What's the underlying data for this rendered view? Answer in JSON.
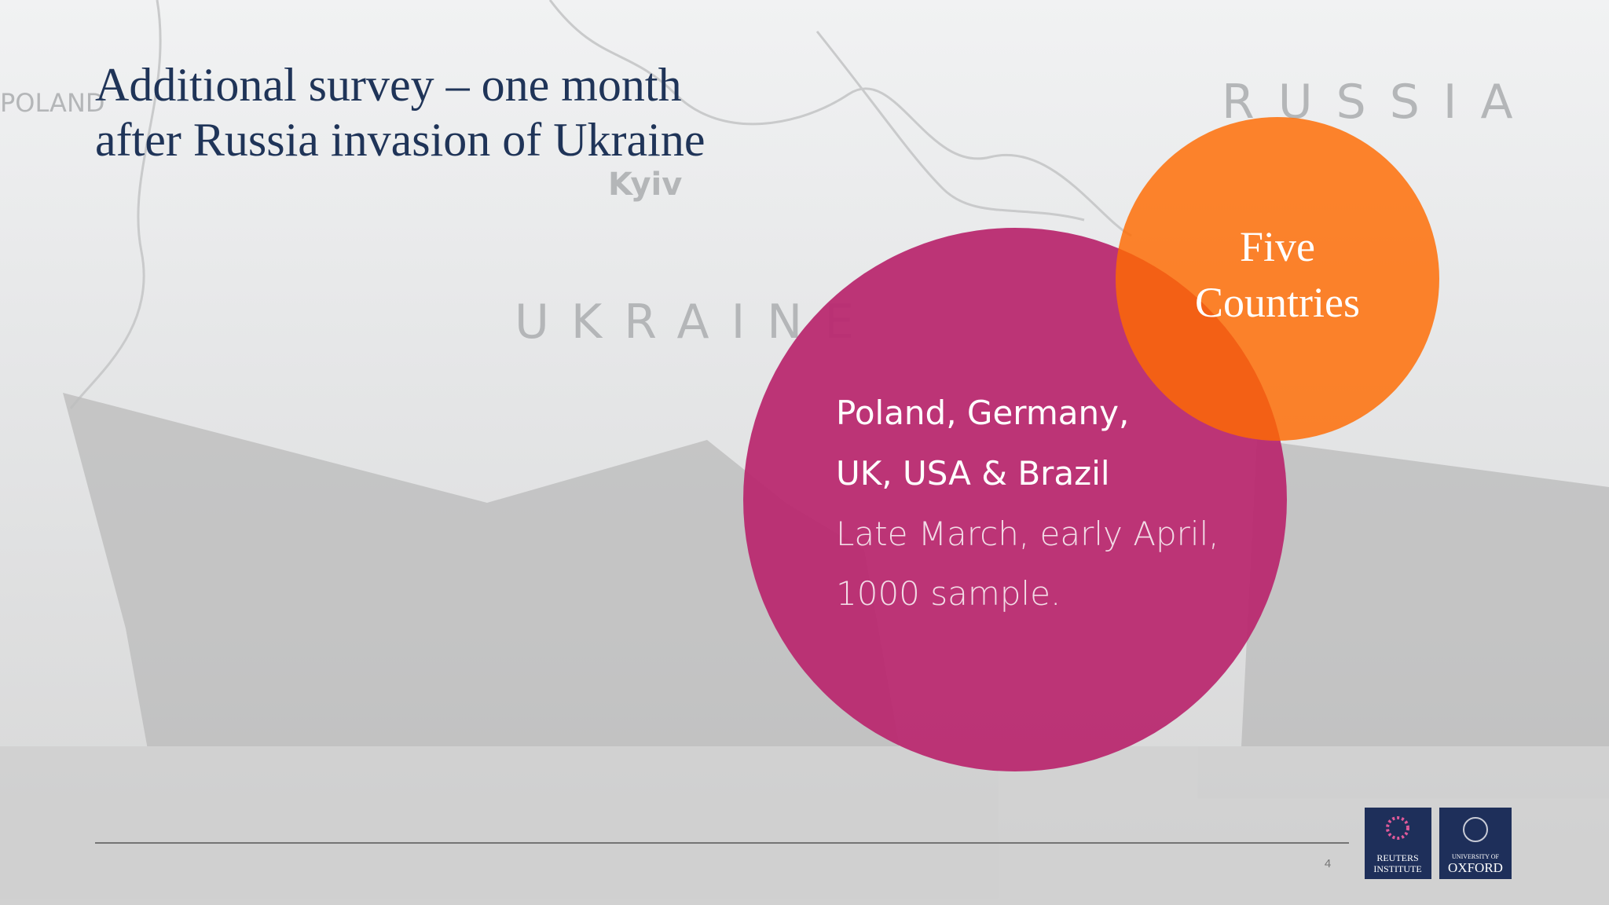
{
  "slide": {
    "title_lines": [
      "Additional survey – one month",
      "after Russia invasion of Ukraine"
    ],
    "background_labels": [
      "POLAND",
      "Kyiv",
      "UKRAINE",
      "RUSSIA"
    ],
    "orange_circle": {
      "lines": [
        "Five",
        "Countries"
      ]
    },
    "pink_circle": {
      "bold_lines": [
        "Poland, Germany,",
        "UK, USA & Brazil"
      ],
      "light_lines": [
        "Late March, early April,",
        "1000 sample."
      ]
    },
    "page_number": "4",
    "logos": [
      {
        "lines": [
          "REUTERS",
          "INSTITUTE"
        ]
      },
      {
        "lines": [
          "UNIVERSITY OF",
          "OXFORD"
        ]
      }
    ]
  }
}
